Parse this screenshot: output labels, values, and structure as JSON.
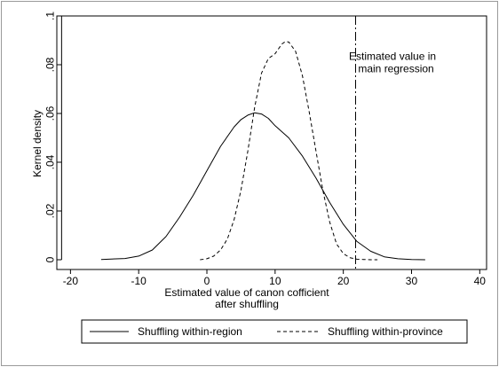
{
  "chart_data": {
    "type": "line",
    "title": "",
    "xlabel_lines": [
      "Estimated value of canon cofficient",
      "after shuffling"
    ],
    "ylabel": "Kernel density",
    "xlim": [
      -22,
      41
    ],
    "ylim": [
      -0.004,
      0.1
    ],
    "xticks": [
      -20,
      -10,
      0,
      10,
      20,
      30,
      40
    ],
    "xtick_labels": [
      "-20",
      "-10",
      "0",
      "10",
      "20",
      "30",
      "40"
    ],
    "yticks": [
      0,
      0.02,
      0.04,
      0.06,
      0.08,
      0.1
    ],
    "ytick_labels": [
      "0",
      ".02",
      ".04",
      ".06",
      ".08",
      ".1"
    ],
    "grid": false,
    "legend_position": "bottom",
    "series": [
      {
        "name": "Shuffling within-region",
        "style": "solid",
        "x": [
          -15.5,
          -12,
          -10,
          -8,
          -6,
          -4,
          -2,
          0,
          2,
          4,
          5,
          6,
          7,
          8,
          9,
          10,
          11,
          12,
          14,
          16,
          18,
          20,
          22,
          24,
          26,
          28,
          30,
          32
        ],
        "y": [
          0.0001,
          0.0005,
          0.0015,
          0.004,
          0.0095,
          0.0175,
          0.0265,
          0.0365,
          0.0465,
          0.0545,
          0.0575,
          0.0593,
          0.0603,
          0.0598,
          0.058,
          0.055,
          0.0525,
          0.05,
          0.0425,
          0.0335,
          0.0235,
          0.0145,
          0.0075,
          0.0035,
          0.0012,
          0.0004,
          0.0001,
          0.0
        ]
      },
      {
        "name": "Shuffling within-province",
        "style": "dashed",
        "x": [
          -1,
          0,
          1,
          2,
          3,
          4,
          5,
          6,
          7,
          8,
          9,
          10,
          11,
          11.5,
          12,
          13,
          14,
          15,
          16,
          17,
          18,
          19,
          20,
          21,
          22,
          23,
          24,
          25
        ],
        "y": [
          0.0,
          0.0004,
          0.0015,
          0.004,
          0.0085,
          0.0165,
          0.0285,
          0.0445,
          0.0625,
          0.0765,
          0.0825,
          0.0845,
          0.0885,
          0.0895,
          0.0893,
          0.0855,
          0.0755,
          0.0605,
          0.0445,
          0.0285,
          0.0155,
          0.0065,
          0.0025,
          0.0008,
          0.0002,
          0.0001,
          0.0,
          0.0
        ]
      }
    ],
    "vline": {
      "x": 21.8,
      "style": "longdash"
    },
    "annotation": {
      "lines": [
        "Estimated value in",
        "main regression"
      ],
      "x": 22,
      "y": 0.082
    }
  }
}
